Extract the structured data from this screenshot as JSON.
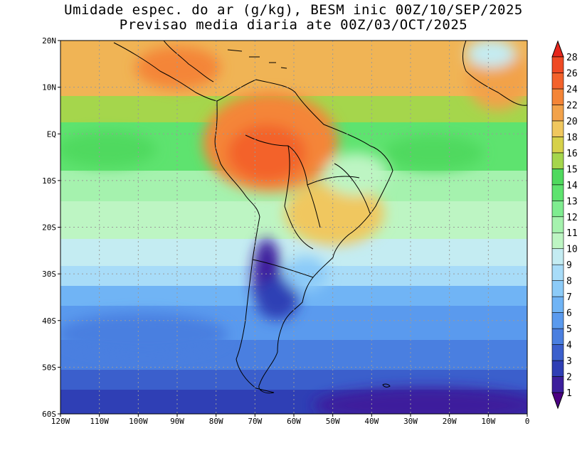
{
  "title_line1": "Umidade espec. do ar (g/kg), BESM inic 00Z/10/SEP/2025",
  "title_line2": "Previsao media diaria ate 00Z/03/OCT/2025",
  "lat_ticks": [
    "20N",
    "10N",
    "EQ",
    "10S",
    "20S",
    "30S",
    "40S",
    "50S",
    "60S"
  ],
  "lon_ticks": [
    "120W",
    "110W",
    "100W",
    "90W",
    "80W",
    "70W",
    "60W",
    "50W",
    "40W",
    "30W",
    "20W",
    "10W",
    "0"
  ],
  "colorbar": {
    "levels": [
      "1",
      "2",
      "3",
      "4",
      "5",
      "6",
      "7",
      "8",
      "9",
      "10",
      "11",
      "12",
      "13",
      "14",
      "15",
      "16",
      "18",
      "20",
      "22",
      "24",
      "26",
      "28"
    ],
    "colors": [
      "#4b0082",
      "#3c1f9c",
      "#2f3fb5",
      "#3b5fcc",
      "#4a7fe0",
      "#5a9aee",
      "#70b4f5",
      "#8ccbf8",
      "#a8dcf8",
      "#c4ecf2",
      "#bdf5c3",
      "#a5f2ae",
      "#7fec90",
      "#5ee36f",
      "#4fd95e",
      "#a5d64c",
      "#d6d14a",
      "#f0c75e",
      "#f2a24a",
      "#f48537",
      "#f3622b",
      "#ef4a24",
      "#e5261c"
    ]
  },
  "colors": {
    "coast": "#000000",
    "grid": "#9a9a9a"
  }
}
